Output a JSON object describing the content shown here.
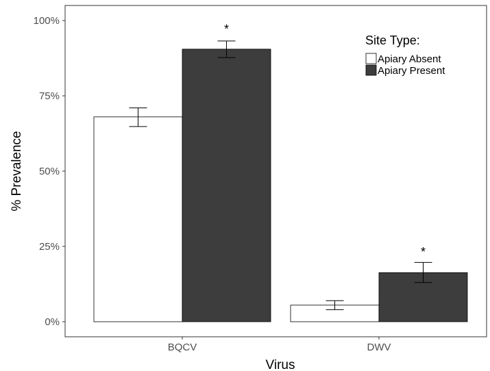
{
  "chart_data": {
    "type": "bar",
    "categories": [
      "BQCV",
      "DWV"
    ],
    "xlabel": "Virus",
    "ylabel": "% Prevalence",
    "ylim": [
      0,
      1
    ],
    "yticks": [
      0,
      0.25,
      0.5,
      0.75,
      1.0
    ],
    "ytick_labels": [
      "0%",
      "25%",
      "50%",
      "75%",
      "100%"
    ],
    "grid": false,
    "legend": {
      "title": "Site Type:",
      "placement": "top-right"
    },
    "series": [
      {
        "name": "Apiary Absent",
        "color": "#ffffff",
        "values": [
          0.68,
          0.055
        ],
        "err_low": [
          0.648,
          0.04
        ],
        "err_high": [
          0.71,
          0.07
        ]
      },
      {
        "name": "Apiary Present",
        "color": "#3d3d3d",
        "values": [
          0.905,
          0.163
        ],
        "err_low": [
          0.877,
          0.13
        ],
        "err_high": [
          0.932,
          0.197
        ]
      }
    ],
    "annotations": [
      {
        "text": "*",
        "category": "BQCV",
        "series": "Apiary Present",
        "y": 0.99
      },
      {
        "text": "*",
        "category": "DWV",
        "series": "Apiary Present",
        "y": 0.25
      }
    ]
  }
}
